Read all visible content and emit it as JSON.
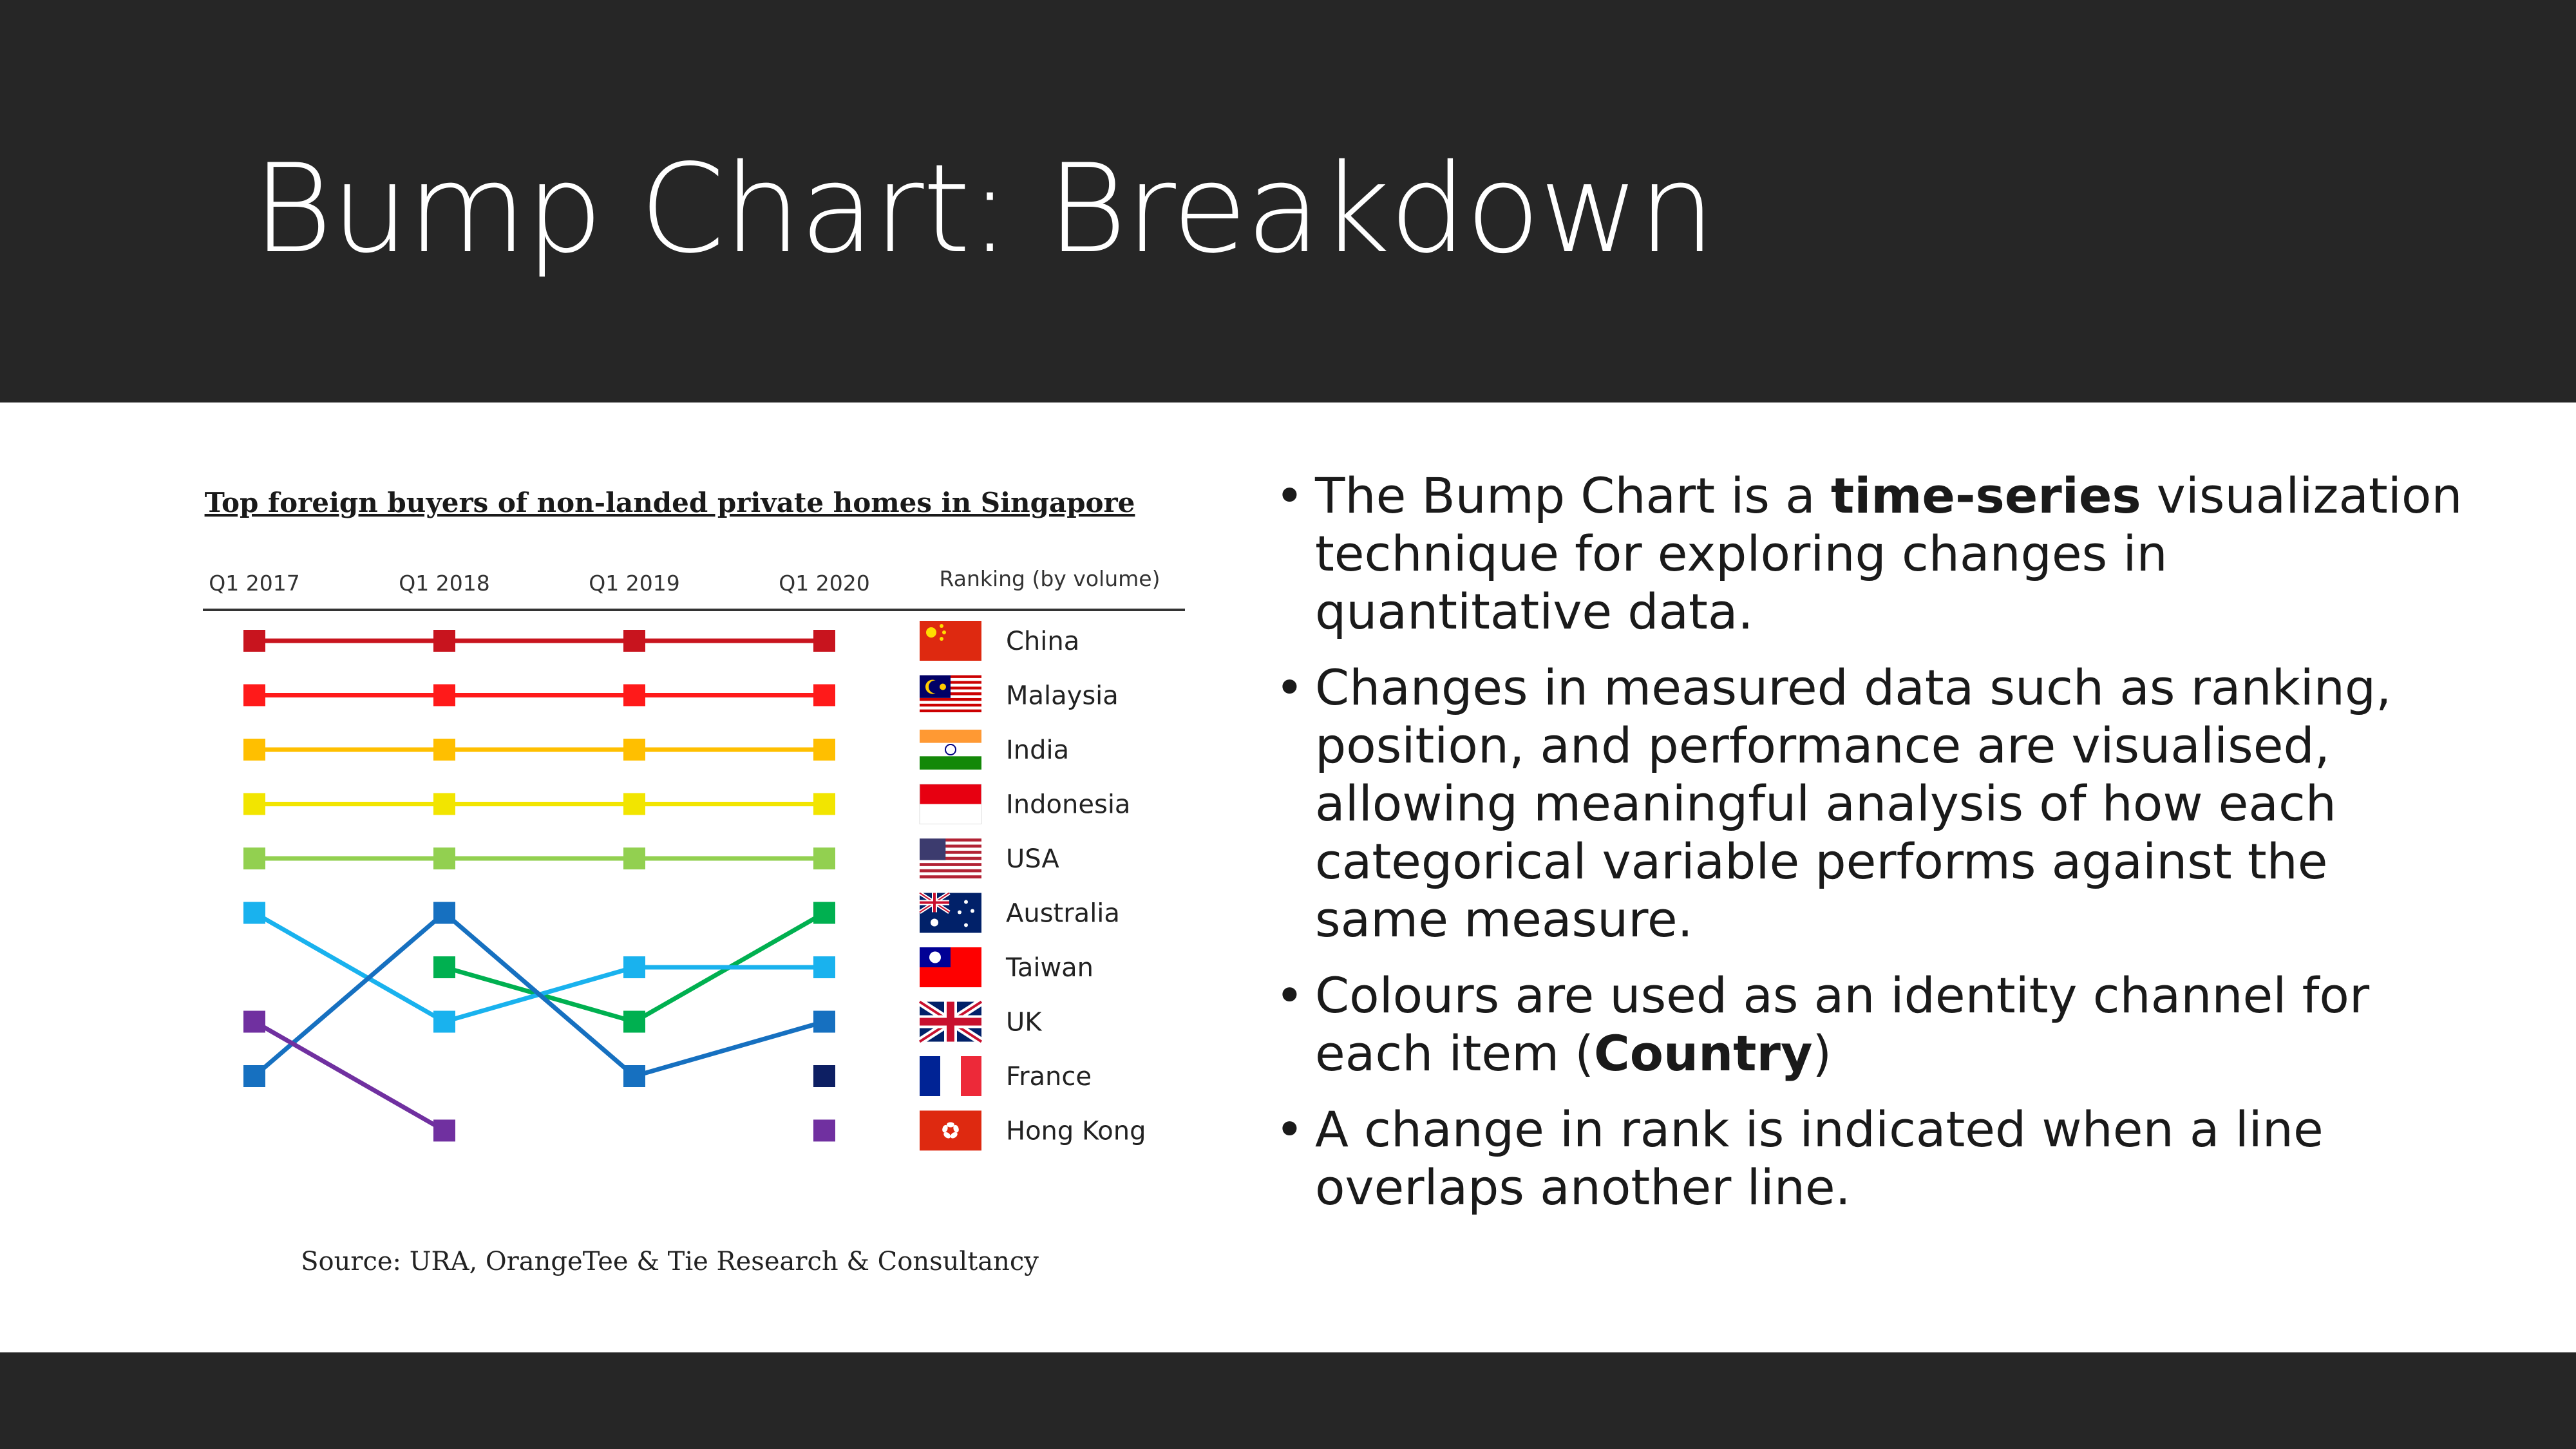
{
  "slide": {
    "title": "Bump Chart: Breakdown"
  },
  "bullets": [
    {
      "pre": "The Bump Chart is a ",
      "bold": "time-series",
      "post": " visualization technique for exploring changes in quantitative data."
    },
    {
      "pre": "Changes in measured data such as ranking, position, and performance are visualised, allowing meaningful analysis of how each categorical variable performs against the same measure.",
      "bold": "",
      "post": ""
    },
    {
      "pre": "Colours are used as an identity channel for each item (",
      "bold": "Country",
      "post": ")"
    },
    {
      "pre": "A change in rank is indicated when a line overlaps another line.",
      "bold": "",
      "post": ""
    }
  ],
  "chart_data": {
    "type": "line",
    "title": "Top foreign buyers of non-landed private homes in Singapore",
    "source": "Source: URA, OrangeTee & Tie Research & Consultancy",
    "x": [
      "Q1 2017",
      "Q1 2018",
      "Q1 2019",
      "Q1 2020"
    ],
    "legend_title": "Ranking (by volume)",
    "y_reversed": true,
    "ylim": [
      1,
      10
    ],
    "grid": false,
    "legend_position": "right",
    "series": [
      {
        "name": "China",
        "color": "#c8141e",
        "ranks": [
          1,
          1,
          1,
          1
        ],
        "flag_icon": "china-flag-icon"
      },
      {
        "name": "Malaysia",
        "color": "#ff1a1a",
        "ranks": [
          2,
          2,
          2,
          2
        ],
        "flag_icon": "malaysia-flag-icon"
      },
      {
        "name": "India",
        "color": "#ffbf00",
        "ranks": [
          3,
          3,
          3,
          3
        ],
        "flag_icon": "india-flag-icon"
      },
      {
        "name": "Indonesia",
        "color": "#f2e500",
        "ranks": [
          4,
          4,
          4,
          4
        ],
        "flag_icon": "indonesia-flag-icon"
      },
      {
        "name": "USA",
        "color": "#92d050",
        "ranks": [
          5,
          5,
          5,
          5
        ],
        "flag_icon": "usa-flag-icon"
      },
      {
        "name": "Australia",
        "color": "#00b050",
        "ranks": [
          null,
          7,
          8,
          6
        ],
        "flag_icon": "australia-flag-icon"
      },
      {
        "name": "Taiwan",
        "color": "#19b2ee",
        "ranks": [
          6,
          8,
          7,
          7
        ],
        "flag_icon": "taiwan-flag-icon"
      },
      {
        "name": "UK",
        "color": "#1670c0",
        "ranks": [
          9,
          6,
          9,
          8
        ],
        "flag_icon": "uk-flag-icon"
      },
      {
        "name": "France",
        "color": "#0d1f63",
        "ranks": [
          null,
          null,
          null,
          9
        ],
        "flag_icon": "france-flag-icon"
      },
      {
        "name": "Hong Kong",
        "color": "#7030a0",
        "ranks": [
          8,
          10,
          null,
          10
        ],
        "flag_icon": "hongkong-flag-icon"
      }
    ]
  }
}
